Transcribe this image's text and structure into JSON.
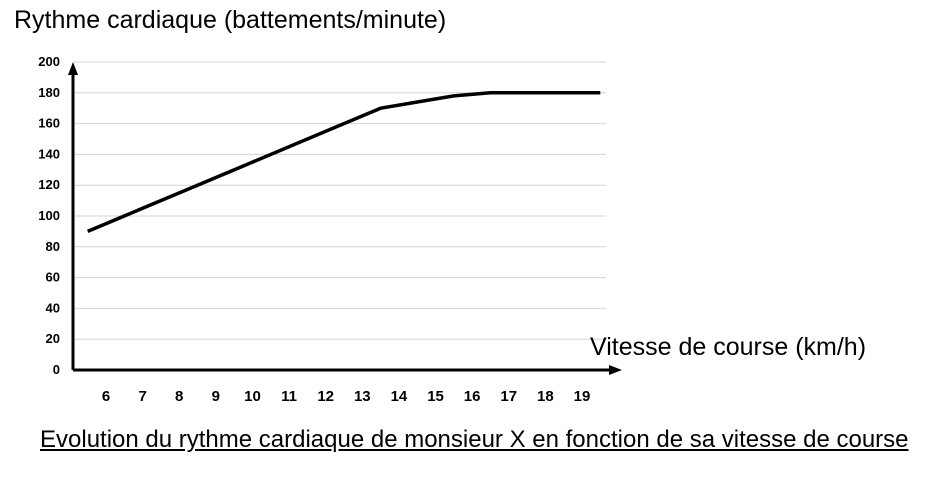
{
  "chart_data": {
    "type": "line",
    "title": "",
    "ylabel": "Rythme cardiaque (battements/minute)",
    "xlabel": "Vitesse de course (km/h)",
    "caption": "Evolution du rythme cardiaque de monsieur X en fonction de sa vitesse de course",
    "ylim": [
      0,
      200
    ],
    "yticks": [
      0,
      20,
      40,
      60,
      80,
      100,
      120,
      140,
      160,
      180,
      200
    ],
    "xticks": [
      6,
      7,
      8,
      9,
      10,
      11,
      12,
      13,
      14,
      15,
      16,
      17,
      18,
      19
    ],
    "grid": true,
    "series": [
      {
        "x": [
          5.5,
          7,
          8.5,
          10,
          11.5,
          13.5,
          15.5,
          16.5,
          17.5,
          19.5
        ],
        "y": [
          90,
          105,
          120,
          135,
          150,
          170,
          178,
          180,
          180,
          180
        ]
      }
    ]
  }
}
